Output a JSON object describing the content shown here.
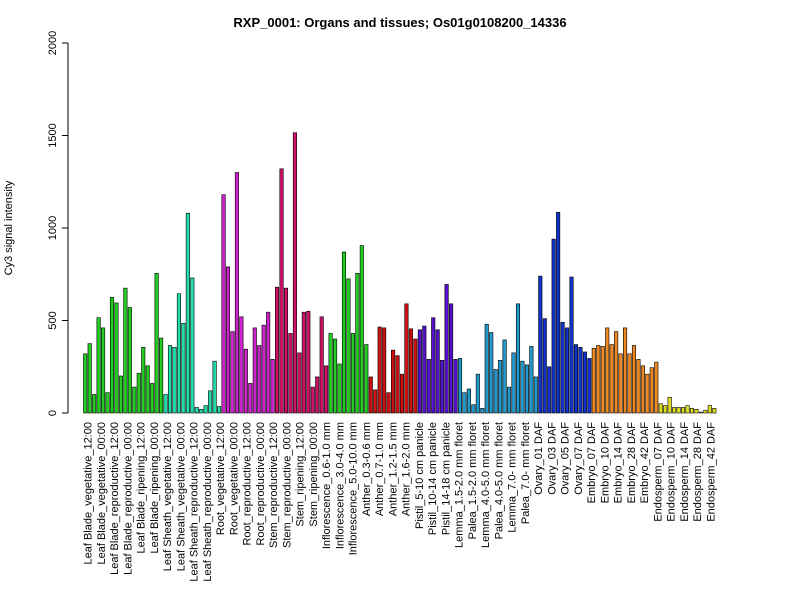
{
  "chart_data": {
    "type": "bar",
    "title": "RXP_0001: Organs and tissues; Os01g0108200_14336",
    "xlabel": "",
    "ylabel": "Cy3 signal intensity",
    "ylim": [
      0,
      2000
    ],
    "yticks": [
      0,
      500,
      1000,
      1500,
      2000
    ],
    "grid": false,
    "legend": "none",
    "groups": [
      {
        "color": "#22cc22",
        "values": [
          320,
          375,
          100,
          515,
          460,
          110,
          625,
          595,
          200,
          675,
          570,
          140,
          215,
          355,
          255,
          160,
          755,
          405
        ]
      },
      {
        "color": "#22ddaa",
        "values": [
          100,
          365,
          355,
          645,
          485,
          1080,
          730,
          30,
          20,
          40,
          120,
          280,
          35
        ]
      },
      {
        "color": "#cc22cc",
        "values": [
          1180,
          790,
          440,
          1300,
          520,
          345,
          160,
          460,
          365,
          475,
          545,
          290
        ]
      },
      {
        "color": "#cc1166",
        "values": [
          680,
          1320,
          675,
          430,
          1515,
          325,
          545,
          550,
          140,
          195,
          520,
          255
        ]
      },
      {
        "color": "#22cc22",
        "values": [
          430,
          400,
          265,
          870,
          725,
          430,
          755,
          905,
          370
        ]
      },
      {
        "color": "#cc1111",
        "values": [
          195,
          125,
          465,
          460,
          110,
          340,
          310,
          210,
          590,
          455,
          400
        ]
      },
      {
        "color": "#5511cc",
        "values": [
          450,
          470,
          290,
          515,
          450,
          285,
          695,
          590,
          290
        ]
      },
      {
        "color": "#2299cc",
        "values": [
          295,
          110,
          130,
          45,
          210,
          25,
          480,
          435,
          235,
          285,
          395,
          140,
          325,
          590,
          280,
          260,
          360,
          195
        ]
      },
      {
        "color": "#1133cc",
        "values": [
          740,
          510,
          250,
          940,
          1085,
          490,
          460,
          735,
          370,
          355,
          330,
          295
        ]
      },
      {
        "color": "#ee8822",
        "values": [
          350,
          365,
          360,
          460,
          370,
          440,
          320,
          460,
          320,
          365,
          290,
          255,
          210,
          245,
          275
        ]
      },
      {
        "color": "#dddd22",
        "values": [
          50,
          40,
          85,
          30,
          30,
          30,
          40,
          25,
          20,
          5,
          15,
          40,
          25
        ]
      }
    ],
    "category_labels": [
      "Leaf Blade_vegetative_12:00",
      "Leaf Blade_vegetative_00:00",
      "Leaf Blade_reproductive_12:00",
      "Leaf Blade_reproductive_00:00",
      "Leaf Blade_ripening_12:00",
      "Leaf Blade_ripening_00:00",
      "Leaf Sheath_vegetative_12:00",
      "Leaf Sheath_vegetative_00:00",
      "Leaf Sheath_reproductive_12:00",
      "Leaf Sheath_reproductive_00:00",
      "Root_vegetative_12:00",
      "Root_vegetative_00:00",
      "Root_reproductive_12:00",
      "Root_reproductive_00:00",
      "Stem_reproductive_12:00",
      "Stem_reproductive_00:00",
      "Stem_ripening_12:00",
      "Stem_ripening_00:00",
      "Inflorescence_0.6-1.0 mm",
      "Inflorescence_3.0-4.0 mm",
      "Inflorescence_5.0-10.0 mm",
      "Anther_0.3-0.6 mm",
      "Anther_0.7-1.0 mm",
      "Anther_1.2-1.5 mm",
      "Anther_1.6-2.0 mm",
      "Pistil_5-10 cm panicle",
      "Pistil_10-14 cm panicle",
      "Pistil_14-18 cm panicle",
      "Lemma_1.5-2.0 mm floret",
      "Palea_1.5-2.0 mm floret",
      "Lemma_4.0-5.0 mm floret",
      "Palea_4.0-5.0 mm floret",
      "Lemma_7.0- mm floret",
      "Palea_7.0- mm floret",
      "Ovary_01 DAF",
      "Ovary_03 DAF",
      "Ovary_05 DAF",
      "Ovary_07 DAF",
      "Embryo_07 DAF",
      "Embryo_10 DAF",
      "Embryo_14 DAF",
      "Embryo_28 DAF",
      "Embryo_42 DAF",
      "Endosperm_07 DAF",
      "Endosperm_10 DAF",
      "Endosperm_14 DAF",
      "Endosperm_28 DAF",
      "Endosperm_42 DAF"
    ]
  }
}
